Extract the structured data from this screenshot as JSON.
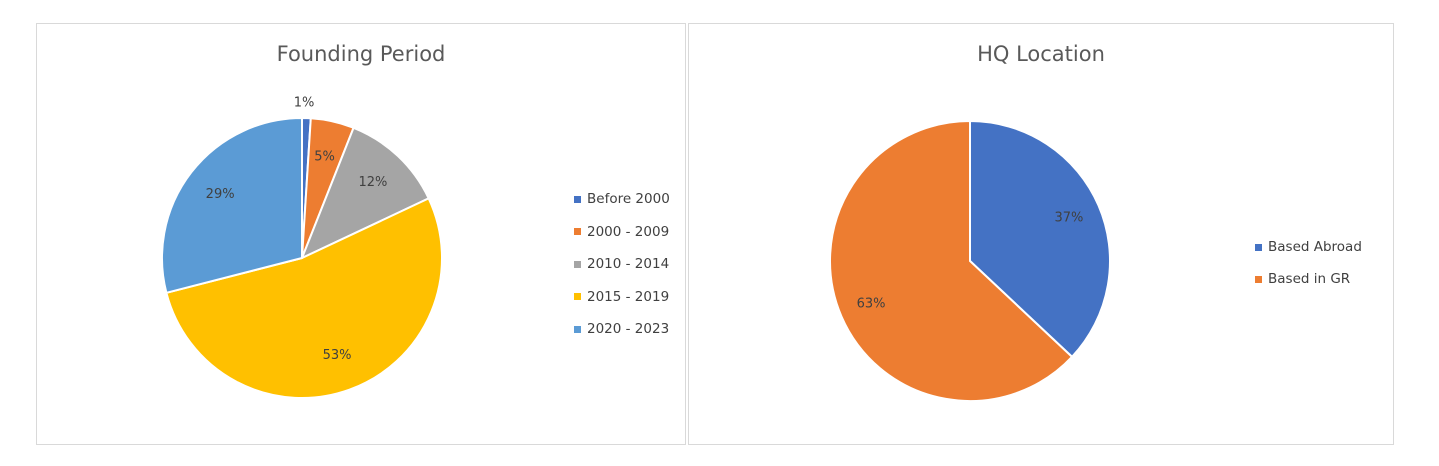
{
  "chart_data": [
    {
      "type": "pie",
      "title": "Founding Period",
      "categories": [
        "Before 2000",
        "2000 - 2009",
        "2010 - 2014",
        "2015 - 2019",
        "2020 - 2023"
      ],
      "values": [
        1,
        5,
        12,
        53,
        29
      ],
      "data_labels": [
        "1%",
        "5%",
        "12%",
        "53%",
        "29%"
      ],
      "colors": [
        "#4472C4",
        "#ED7D31",
        "#A5A5A5",
        "#FFC000",
        "#5B9BD5"
      ],
      "legend": "right",
      "start_angle": "top, clockwise"
    },
    {
      "type": "pie",
      "title": "HQ Location",
      "categories": [
        "Based Abroad",
        "Based in GR"
      ],
      "values": [
        37,
        63
      ],
      "data_labels": [
        "37%",
        "63%"
      ],
      "colors": [
        "#4472C4",
        "#ED7D31"
      ],
      "legend": "right",
      "start_angle": "top, clockwise"
    }
  ]
}
